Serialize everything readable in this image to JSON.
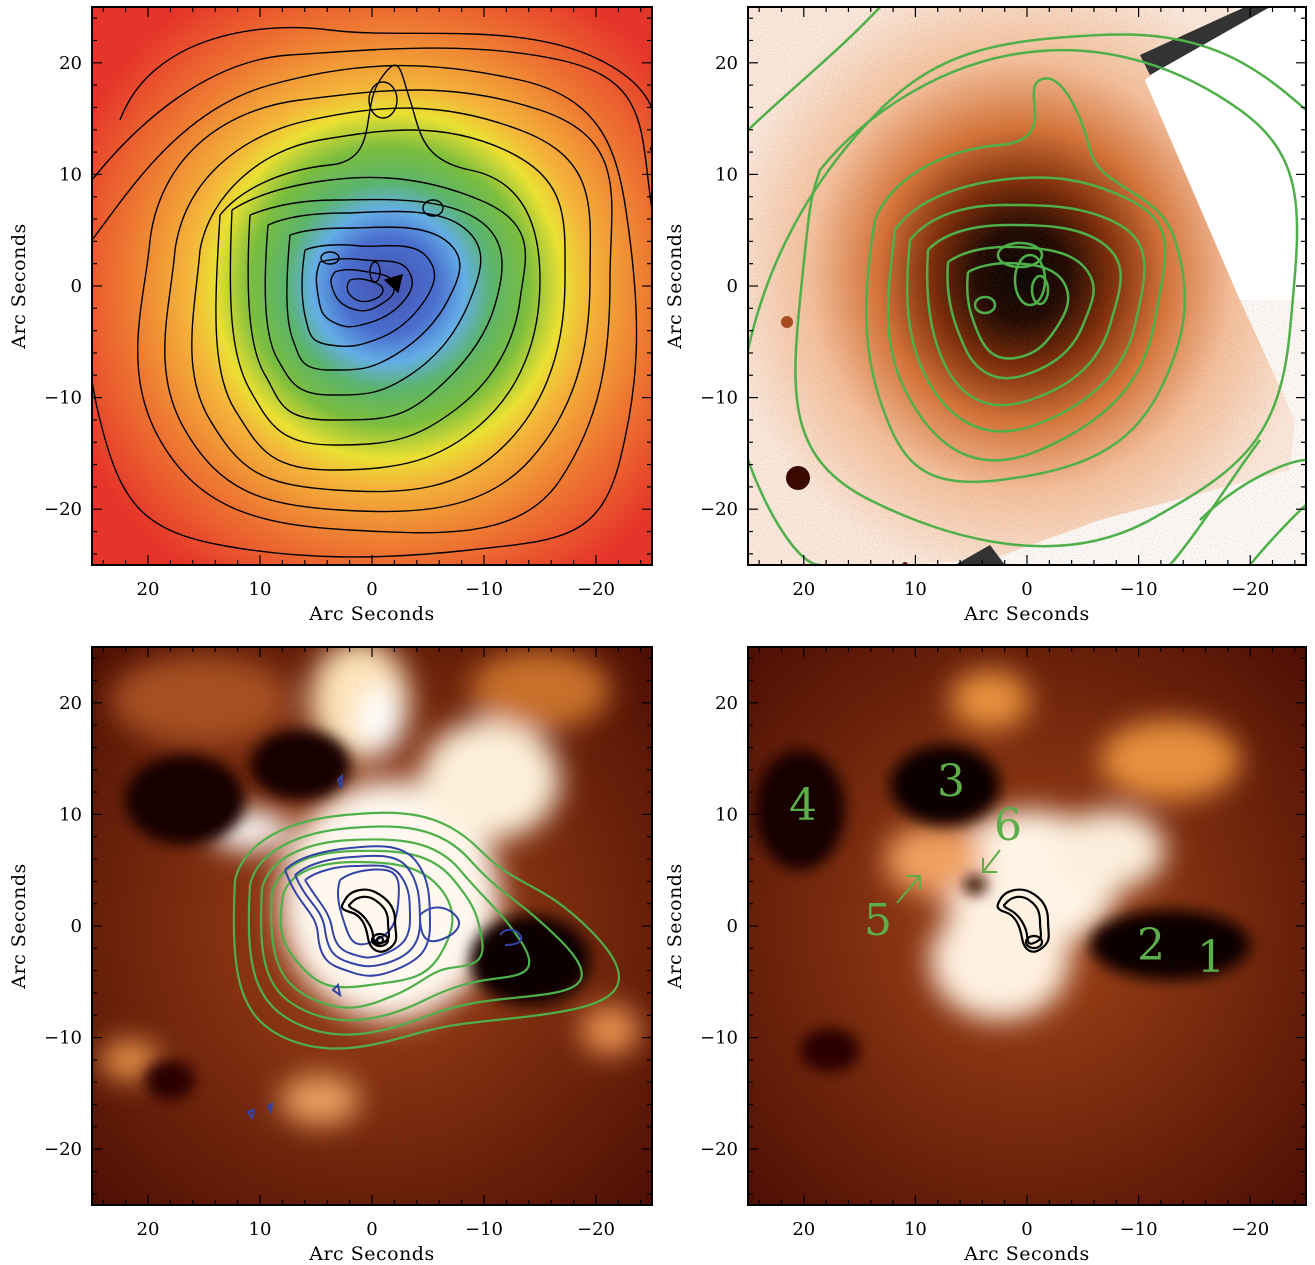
{
  "colors": {
    "green_contour": "#4fb04a",
    "blue_contour": "#3344a8",
    "black_contour": "#000000",
    "marker_text": "#5cae4a"
  },
  "axes": {
    "xlabel": "Arc Seconds",
    "ylabel": "Arc Seconds",
    "x_ticks": [
      "20",
      "10",
      "0",
      "−10",
      "−20"
    ],
    "y_ticks": [
      "20",
      "10",
      "0",
      "−10",
      "−20"
    ]
  },
  "panels": [
    {
      "id": "top-left",
      "image": "rainbow temperature map with black contours"
    },
    {
      "id": "top-right",
      "image": "optical image with green contours"
    },
    {
      "id": "bottom-left",
      "image": "residual map with green, blue and black contours"
    },
    {
      "id": "bottom-right",
      "image": "residual map with black contours and numbered regions"
    }
  ],
  "markers": [
    "1",
    "2",
    "3",
    "4",
    "5",
    "6"
  ]
}
